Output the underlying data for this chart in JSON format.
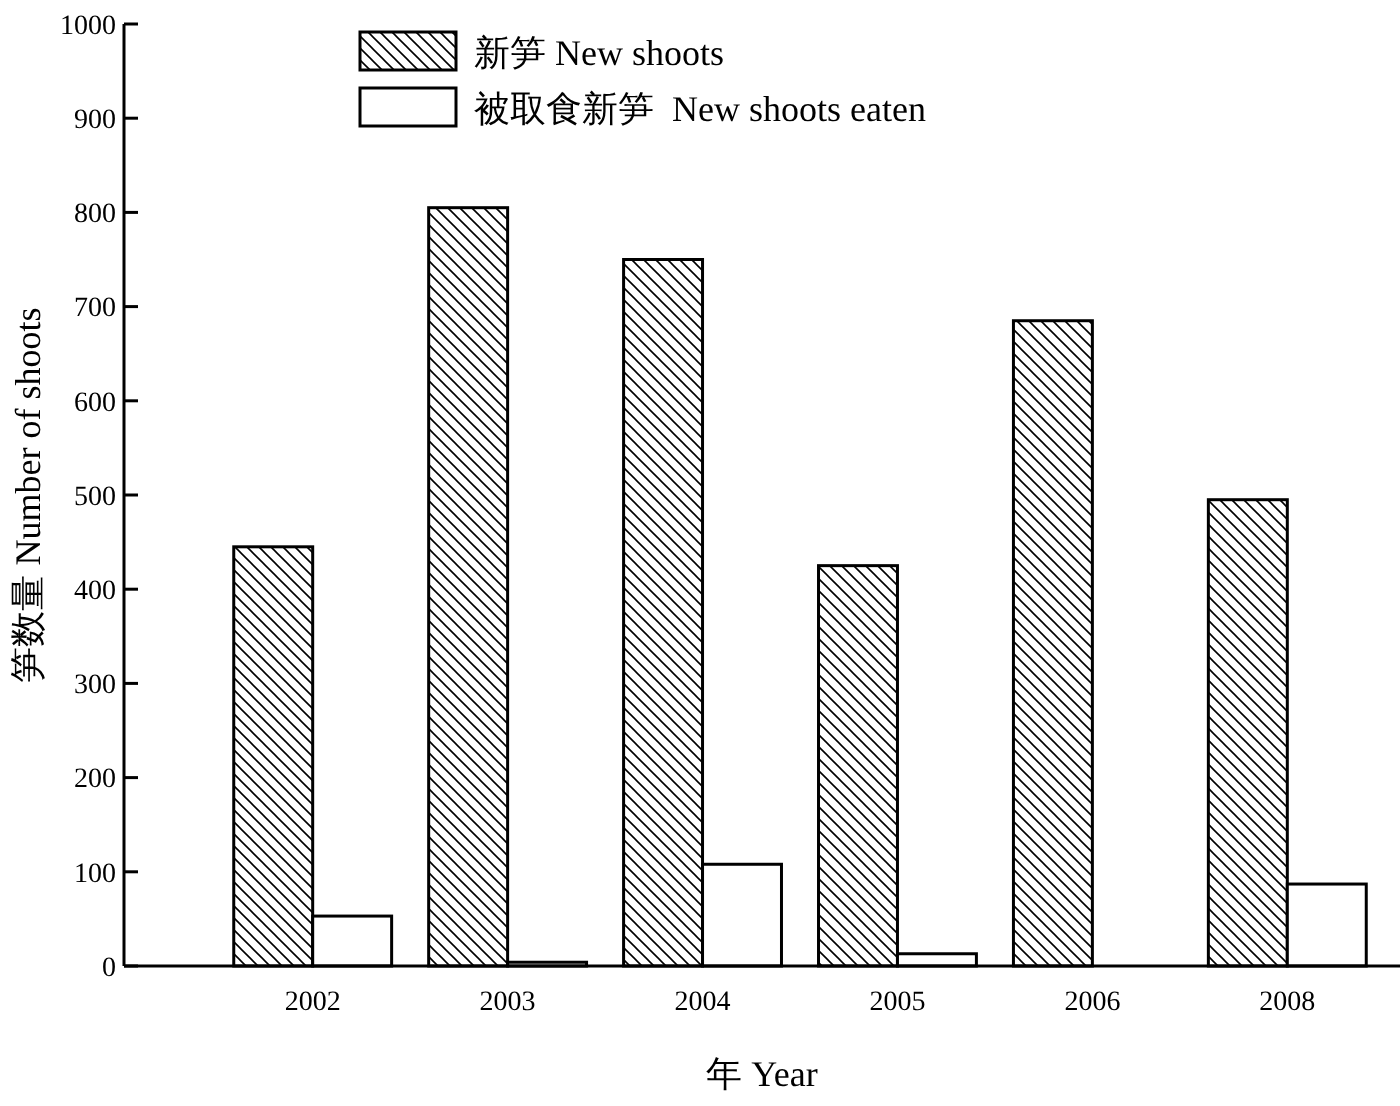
{
  "chart_data": {
    "type": "bar",
    "xlabel": "年 Year",
    "ylabel": "笋数量 Number of shoots",
    "categories": [
      "2002",
      "2003",
      "2004",
      "2005",
      "2006",
      "2008"
    ],
    "series": [
      {
        "name": "新笋 New shoots",
        "color": "#000000",
        "values": [
          445,
          805,
          750,
          425,
          685,
          495
        ]
      },
      {
        "name": "被取食新笋  New shoots eaten",
        "color": "#ffffff",
        "values": [
          53,
          4,
          108,
          13,
          0,
          87
        ]
      }
    ],
    "ylim": [
      0,
      1000
    ],
    "yticks": [
      0,
      100,
      200,
      300,
      400,
      500,
      600,
      700,
      800,
      900,
      1000
    ],
    "grid": false,
    "legend": "top"
  }
}
